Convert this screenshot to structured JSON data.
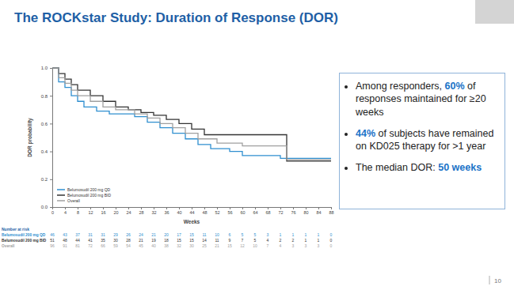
{
  "chart_data": {
    "type": "line",
    "title": "The ROCKstar Study: Duration of Response (DOR)",
    "x_label": "Weeks",
    "y_label": "DOR probability",
    "xlim": [
      0,
      88
    ],
    "ylim": [
      0,
      1
    ],
    "xticks": [
      0,
      4,
      8,
      12,
      16,
      20,
      24,
      28,
      32,
      36,
      40,
      44,
      48,
      52,
      56,
      60,
      64,
      68,
      72,
      76,
      80,
      84,
      88
    ],
    "yticks": [
      {
        "value": 0,
        "label": "0.0"
      },
      0.2,
      0.4,
      0.6,
      0.8,
      {
        "value": 1,
        "label": "1.0"
      }
    ],
    "grid": false,
    "legend": "lower left",
    "line_style": "step",
    "series": [
      {
        "name": "Belumosudil 200 mg QD",
        "color": "#2f8fd0",
        "x": [
          0,
          2,
          4,
          6,
          8,
          10,
          14,
          18,
          26,
          30,
          34,
          38,
          42,
          46,
          50,
          56,
          60,
          72,
          88
        ],
        "values": [
          1.0,
          0.9,
          0.86,
          0.8,
          0.76,
          0.72,
          0.69,
          0.67,
          0.65,
          0.61,
          0.57,
          0.53,
          0.49,
          0.45,
          0.42,
          0.4,
          0.37,
          0.35,
          0.35
        ]
      },
      {
        "name": "Belumosudil 200 mg BID",
        "color": "#333333",
        "x": [
          0,
          2,
          4,
          6,
          8,
          12,
          16,
          20,
          24,
          28,
          32,
          36,
          40,
          44,
          48,
          74,
          88
        ],
        "values": [
          1.0,
          0.96,
          0.92,
          0.88,
          0.84,
          0.8,
          0.76,
          0.72,
          0.7,
          0.68,
          0.66,
          0.63,
          0.6,
          0.56,
          0.52,
          0.33,
          0.33
        ]
      },
      {
        "name": "Overall",
        "color": "#a0a0a0",
        "x": [
          0,
          2,
          4,
          6,
          8,
          12,
          16,
          20,
          26,
          30,
          34,
          38,
          42,
          46,
          52,
          60,
          74,
          88
        ],
        "values": [
          1.0,
          0.93,
          0.89,
          0.84,
          0.8,
          0.76,
          0.72,
          0.7,
          0.67,
          0.64,
          0.6,
          0.57,
          0.53,
          0.49,
          0.46,
          0.44,
          0.34,
          0.34
        ]
      }
    ],
    "risk_table": {
      "title": "Number at risk",
      "rows": [
        {
          "label": "Belumosudil 200 mg QD",
          "color": "#2f8fd0",
          "values": [
            46,
            43,
            37,
            31,
            31,
            29,
            26,
            24,
            21,
            20,
            17,
            15,
            11,
            10,
            6,
            5,
            5,
            3,
            1,
            1,
            1,
            1,
            0
          ]
        },
        {
          "label": "Belumosudil 200 mg BID",
          "color": "#333333",
          "values": [
            51,
            48,
            44,
            41,
            35,
            30,
            28,
            21,
            19,
            18,
            15,
            15,
            14,
            11,
            9,
            7,
            5,
            4,
            2,
            2,
            1,
            1,
            0
          ]
        },
        {
          "label": "Overall",
          "color": "#a0a0a0",
          "values": [
            96,
            91,
            81,
            72,
            66,
            59,
            54,
            45,
            40,
            38,
            32,
            30,
            25,
            21,
            15,
            12,
            10,
            7,
            4,
            3,
            3,
            3,
            0
          ]
        }
      ]
    }
  },
  "bullets": [
    {
      "before": "Among responders, ",
      "highlight": "60%",
      "after": " of responses maintained for ≥20 weeks"
    },
    {
      "highlight": "44%",
      "after": " of subjects have remained on KD025 therapy for >1 year"
    },
    {
      "before": "The median DOR: ",
      "highlight": "50 weeks"
    }
  ],
  "page_number": "10"
}
